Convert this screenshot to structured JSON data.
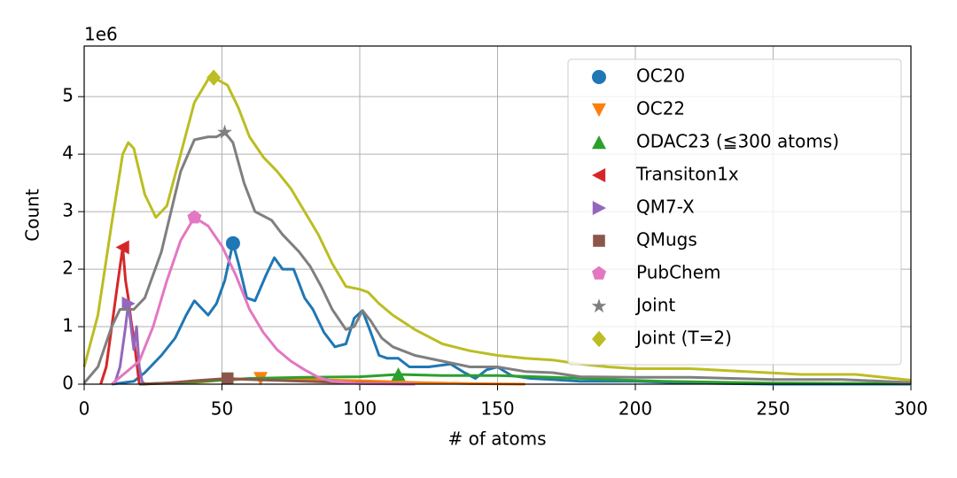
{
  "chart_data": {
    "type": "line",
    "xlabel": "# of atoms",
    "ylabel": "Count",
    "offset_label": "1e6",
    "xlim": [
      0,
      300
    ],
    "xticks": [
      0,
      50,
      100,
      150,
      200,
      250,
      300
    ],
    "ylim": [
      0,
      5.88
    ],
    "yticks": [
      0,
      1,
      2,
      3,
      4,
      5
    ],
    "grid": true,
    "legend": "upper right",
    "series": [
      {
        "name": "OC20",
        "color": "#1f77b4",
        "marker": "circle",
        "x": [
          10,
          18,
          22,
          28,
          33,
          37,
          40,
          43,
          45,
          48,
          51,
          54,
          56,
          59,
          62,
          66,
          69,
          72,
          76,
          80,
          83,
          87,
          91,
          95,
          98,
          101,
          104,
          107,
          110,
          114,
          118,
          125,
          133,
          138,
          142,
          146,
          150,
          155,
          162,
          170,
          180,
          200,
          220,
          250,
          300
        ],
        "values": [
          0,
          0.05,
          0.2,
          0.5,
          0.8,
          1.2,
          1.45,
          1.3,
          1.2,
          1.4,
          1.8,
          2.45,
          2.1,
          1.5,
          1.45,
          1.9,
          2.2,
          2.0,
          2.0,
          1.5,
          1.3,
          0.9,
          0.65,
          0.7,
          1.15,
          1.28,
          0.9,
          0.5,
          0.45,
          0.45,
          0.3,
          0.3,
          0.35,
          0.2,
          0.1,
          0.25,
          0.3,
          0.15,
          0.1,
          0.08,
          0.05,
          0.05,
          0.02,
          0,
          0
        ]
      },
      {
        "name": "OC22",
        "color": "#ff7f0e",
        "marker": "triangle-down",
        "x": [
          20,
          40,
          50,
          64,
          80,
          100,
          120,
          140,
          160
        ],
        "values": [
          0,
          0.03,
          0.07,
          0.1,
          0.08,
          0.06,
          0.03,
          0.01,
          0
        ]
      },
      {
        "name": "ODAC23 (≦300 atoms)",
        "color": "#2ca02c",
        "marker": "triangle-up",
        "x": [
          20,
          40,
          60,
          80,
          100,
          114,
          130,
          150,
          170,
          190,
          210,
          250,
          300
        ],
        "values": [
          0,
          0.04,
          0.1,
          0.12,
          0.13,
          0.17,
          0.15,
          0.15,
          0.12,
          0.08,
          0.05,
          0.02,
          0.01
        ]
      },
      {
        "name": "Transiton1x",
        "color": "#d62728",
        "marker": "triangle-left",
        "x": [
          6,
          8,
          10,
          12,
          14,
          15,
          16,
          17,
          18,
          19,
          20
        ],
        "values": [
          0,
          0.3,
          1.0,
          1.7,
          2.38,
          1.8,
          1.5,
          1.1,
          0.8,
          0.4,
          0
        ]
      },
      {
        "name": "QM7-X",
        "color": "#9467bd",
        "marker": "triangle-right",
        "x": [
          11,
          13,
          15,
          16,
          17,
          18,
          19,
          20,
          21,
          22
        ],
        "values": [
          0,
          0.3,
          1.0,
          1.4,
          1.0,
          0.6,
          1.0,
          0.3,
          0.05,
          0
        ]
      },
      {
        "name": "QMugs",
        "color": "#8c564b",
        "marker": "square",
        "x": [
          20,
          30,
          40,
          52,
          60,
          80,
          100,
          120
        ],
        "values": [
          0,
          0.02,
          0.06,
          0.1,
          0.08,
          0.05,
          0.02,
          0
        ]
      },
      {
        "name": "PubChem",
        "color": "#e377c2",
        "marker": "pentagon",
        "x": [
          10,
          20,
          25,
          30,
          35,
          40,
          45,
          50,
          55,
          60,
          65,
          70,
          75,
          80,
          85,
          90,
          100,
          120
        ],
        "values": [
          0,
          0.4,
          1.0,
          1.8,
          2.5,
          2.9,
          2.75,
          2.4,
          1.9,
          1.3,
          0.9,
          0.6,
          0.4,
          0.25,
          0.12,
          0.05,
          0.01,
          0
        ]
      },
      {
        "name": "Joint",
        "color": "#7f7f7f",
        "marker": "star",
        "x": [
          0,
          5,
          10,
          13,
          18,
          22,
          28,
          35,
          40,
          45,
          48,
          51,
          54,
          58,
          62,
          68,
          72,
          78,
          82,
          86,
          90,
          95,
          98,
          101,
          104,
          108,
          112,
          120,
          130,
          140,
          150,
          160,
          170,
          180,
          200,
          220,
          250,
          275,
          300
        ],
        "values": [
          0.02,
          0.3,
          1.0,
          1.3,
          1.3,
          1.5,
          2.3,
          3.7,
          4.25,
          4.3,
          4.3,
          4.38,
          4.2,
          3.5,
          3.0,
          2.85,
          2.6,
          2.3,
          2.05,
          1.7,
          1.3,
          0.95,
          1.0,
          1.28,
          1.1,
          0.8,
          0.65,
          0.5,
          0.4,
          0.3,
          0.3,
          0.22,
          0.2,
          0.13,
          0.12,
          0.12,
          0.08,
          0.08,
          0.03
        ]
      },
      {
        "name": "Joint (T=2)",
        "color": "#bcbd22",
        "marker": "diamond",
        "x": [
          0,
          5,
          10,
          14,
          16,
          18,
          22,
          26,
          30,
          35,
          40,
          45,
          47,
          52,
          56,
          60,
          65,
          70,
          75,
          80,
          85,
          90,
          95,
          100,
          103,
          107,
          112,
          120,
          130,
          140,
          150,
          160,
          170,
          180,
          190,
          200,
          220,
          240,
          260,
          280,
          300
        ],
        "values": [
          0.3,
          1.2,
          2.8,
          4.0,
          4.2,
          4.1,
          3.3,
          2.9,
          3.1,
          4.0,
          4.9,
          5.3,
          5.33,
          5.2,
          4.8,
          4.3,
          3.95,
          3.7,
          3.4,
          3.0,
          2.6,
          2.1,
          1.7,
          1.65,
          1.6,
          1.4,
          1.2,
          0.95,
          0.7,
          0.58,
          0.5,
          0.45,
          0.42,
          0.35,
          0.3,
          0.27,
          0.27,
          0.22,
          0.17,
          0.17,
          0.07
        ]
      }
    ]
  }
}
